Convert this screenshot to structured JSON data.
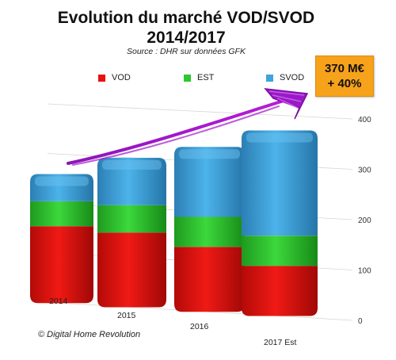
{
  "title_line1": "Evolution du marché VOD/SVOD",
  "title_line2": "2014/2017",
  "subtitle": "Source : DHR sur données GFK",
  "callout": {
    "line1": "370 M€",
    "line2": "+ 40%",
    "color": "#f7a21b"
  },
  "copyright": "© Digital Home Revolution",
  "legend": [
    {
      "label": "VOD",
      "color": "#e8110f"
    },
    {
      "label": "EST",
      "color": "#2ec72e"
    },
    {
      "label": "SVOD",
      "color": "#3fa3dc"
    }
  ],
  "chart_data": {
    "type": "bar",
    "stacked": true,
    "title": "Evolution du marché VOD/SVOD 2014/2017",
    "subtitle": "Source : DHR sur données GFK",
    "categories": [
      "2014",
      "2015",
      "2016",
      "2017 Est"
    ],
    "series": [
      {
        "name": "VOD",
        "color": "#e8110f",
        "values": [
          155,
          150,
          130,
          100
        ]
      },
      {
        "name": "EST",
        "color": "#2ec72e",
        "values": [
          50,
          55,
          60,
          60
        ]
      },
      {
        "name": "SVOD",
        "color": "#3fa3dc",
        "values": [
          55,
          95,
          140,
          210
        ]
      }
    ],
    "y_ticks": [
      0,
      100,
      200,
      300,
      400
    ],
    "ylim": [
      0,
      400
    ],
    "grid": true,
    "legend_position": "top",
    "annotation": "370 M€ + 40%"
  }
}
